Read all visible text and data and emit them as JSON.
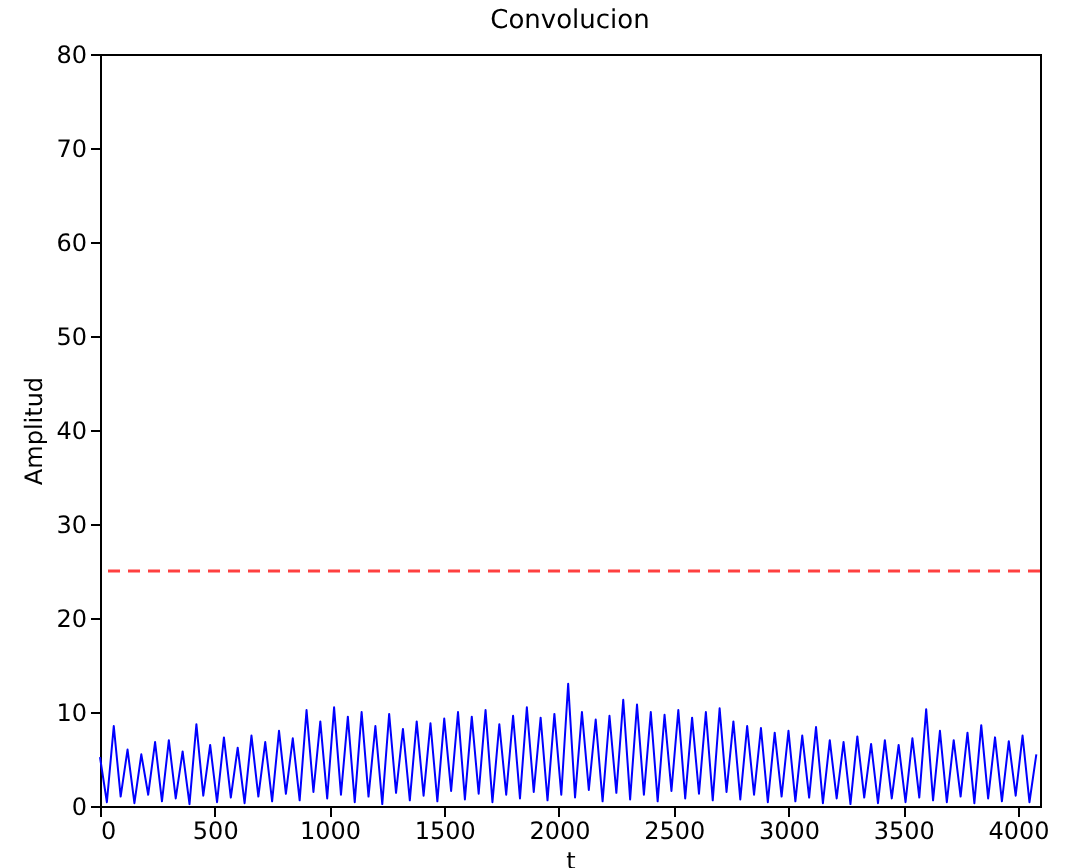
{
  "chart_data": {
    "type": "line",
    "title": "Convolucion",
    "xlabel": "t",
    "ylabel": "Amplitud",
    "x": [
      0,
      30,
      60,
      90,
      120,
      150,
      180,
      210,
      240,
      270,
      300,
      330,
      360,
      390,
      420,
      450,
      480,
      510,
      540,
      570,
      600,
      630,
      660,
      690,
      720,
      750,
      780,
      810,
      840,
      870,
      900,
      930,
      960,
      990,
      1020,
      1050,
      1080,
      1110,
      1140,
      1170,
      1200,
      1230,
      1260,
      1290,
      1320,
      1350,
      1380,
      1410,
      1440,
      1470,
      1500,
      1530,
      1560,
      1590,
      1620,
      1650,
      1680,
      1710,
      1740,
      1770,
      1800,
      1830,
      1860,
      1890,
      1920,
      1950,
      1980,
      2010,
      2040,
      2070,
      2100,
      2130,
      2160,
      2190,
      2220,
      2250,
      2280,
      2310,
      2340,
      2370,
      2400,
      2430,
      2460,
      2490,
      2520,
      2550,
      2580,
      2610,
      2640,
      2670,
      2700,
      2730,
      2760,
      2790,
      2820,
      2850,
      2880,
      2910,
      2940,
      2970,
      3000,
      3030,
      3060,
      3090,
      3120,
      3150,
      3180,
      3210,
      3240,
      3270,
      3300,
      3330,
      3360,
      3390,
      3420,
      3450,
      3480,
      3510,
      3540,
      3570,
      3600,
      3630,
      3660,
      3690,
      3720,
      3750,
      3780,
      3810,
      3840,
      3870,
      3900,
      3930,
      3960,
      3990,
      4020,
      4050,
      4080
    ],
    "series": [
      {
        "color": "#0000ff",
        "values": [
          5.2,
          0.4,
          8.5,
          1.0,
          6.0,
          0.3,
          5.5,
          1.2,
          6.8,
          0.5,
          7.0,
          0.8,
          5.8,
          0.2,
          8.7,
          1.1,
          6.5,
          0.4,
          7.3,
          0.9,
          6.2,
          0.3,
          7.5,
          1.0,
          6.8,
          0.5,
          8.0,
          1.3,
          7.2,
          0.6,
          10.2,
          1.5,
          9.0,
          0.8,
          10.5,
          1.2,
          9.5,
          0.4,
          10.0,
          1.0,
          8.5,
          0.2,
          9.8,
          1.4,
          8.2,
          0.6,
          9.0,
          1.1,
          8.8,
          0.5,
          9.3,
          1.6,
          10.0,
          0.7,
          9.5,
          1.3,
          10.2,
          0.4,
          8.7,
          1.2,
          9.6,
          0.8,
          10.5,
          1.5,
          9.4,
          0.6,
          9.8,
          1.2,
          13.0,
          0.9,
          10.0,
          1.7,
          9.2,
          0.5,
          9.6,
          1.4,
          11.3,
          0.7,
          10.8,
          1.2,
          10.0,
          0.5,
          9.7,
          1.6,
          10.2,
          0.8,
          9.4,
          1.3,
          10.0,
          0.6,
          10.4,
          1.5,
          9.0,
          0.7,
          8.5,
          1.2,
          8.3,
          0.4,
          7.8,
          1.0,
          8.0,
          0.5,
          7.5,
          0.9,
          8.4,
          0.3,
          7.0,
          0.8,
          6.8,
          0.2,
          7.4,
          0.9,
          6.6,
          0.3,
          7.0,
          0.8,
          6.5,
          0.4,
          7.2,
          0.9,
          10.3,
          0.6,
          8.0,
          0.4,
          7.0,
          1.0,
          7.8,
          0.3,
          8.6,
          0.8,
          7.3,
          0.5,
          6.9,
          1.1,
          7.5,
          0.4,
          5.5
        ]
      }
    ],
    "xlim": [
      0,
      4096
    ],
    "xticks": [
      0,
      500,
      1000,
      1500,
      2000,
      2500,
      3000,
      3500,
      4000
    ],
    "ylim": [
      0,
      80
    ],
    "yticks": [
      0,
      10,
      20,
      30,
      40,
      50,
      60,
      70,
      80
    ],
    "ref_lines": [
      {
        "axis": "y",
        "value": 25,
        "color": "#ff4040",
        "line_style": "dashed"
      }
    ],
    "grid": false,
    "marker": "none",
    "line_style": "solid"
  }
}
